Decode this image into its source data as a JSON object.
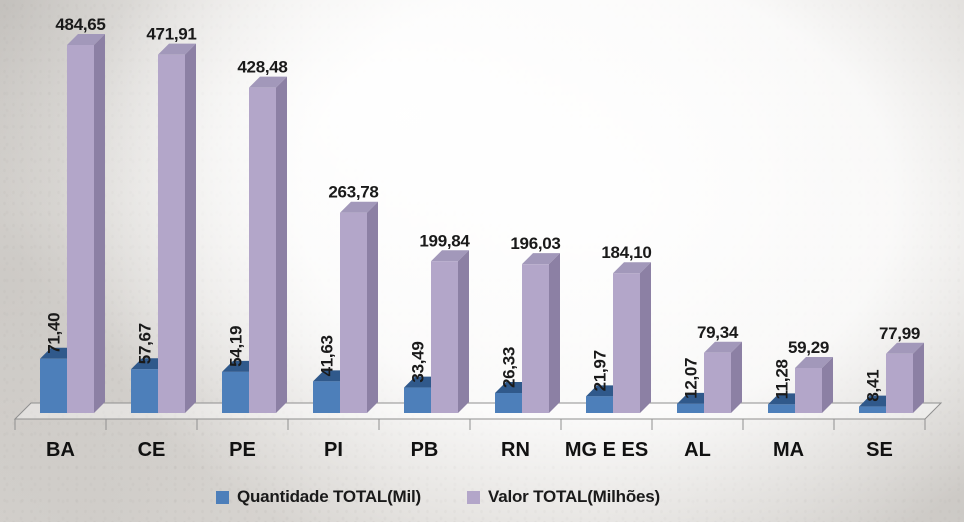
{
  "chart_data": {
    "type": "bar",
    "title": "",
    "effect": "3d-cuboid-bars",
    "grid": false,
    "legend_position": "bottom",
    "value_axis_visible": false,
    "ylim": [
      0,
      500
    ],
    "categories": [
      "BA",
      "CE",
      "PE",
      "PI",
      "PB",
      "RN",
      "MG E ES",
      "AL",
      "MA",
      "SE"
    ],
    "series": [
      {
        "name": "Quantidade TOTAL(Mil)",
        "color": "#4d7fba",
        "color_top": "#30598b",
        "color_side": "#3a689f",
        "values": [
          71.4,
          57.67,
          54.19,
          41.63,
          33.49,
          26.33,
          21.97,
          12.07,
          11.28,
          8.41
        ],
        "labels": [
          "71,40",
          "57,67",
          "54,19",
          "41,63",
          "33,49",
          "26,33",
          "21,97",
          "12,07",
          "11,28",
          "8,41"
        ],
        "label_rotation_deg": -90
      },
      {
        "name": "Valor TOTAL(Milhões)",
        "color": "#b3a6c9",
        "color_top": "#a298ba",
        "color_side": "#8c80a4",
        "values": [
          484.65,
          471.91,
          428.48,
          263.78,
          199.84,
          196.03,
          184.1,
          79.34,
          59.29,
          77.99
        ],
        "labels": [
          "484,65",
          "471,91",
          "428,48",
          "263,78",
          "199,84",
          "196,03",
          "184,10",
          "79,34",
          "59,29",
          "77,99"
        ],
        "label_rotation_deg": 0
      }
    ],
    "axis_color": "#8f8f8f",
    "label_text_color": "#1a1a1a",
    "category_text_color": "#111111",
    "floor_fill": "rgba(255,255,255,0.4)"
  }
}
